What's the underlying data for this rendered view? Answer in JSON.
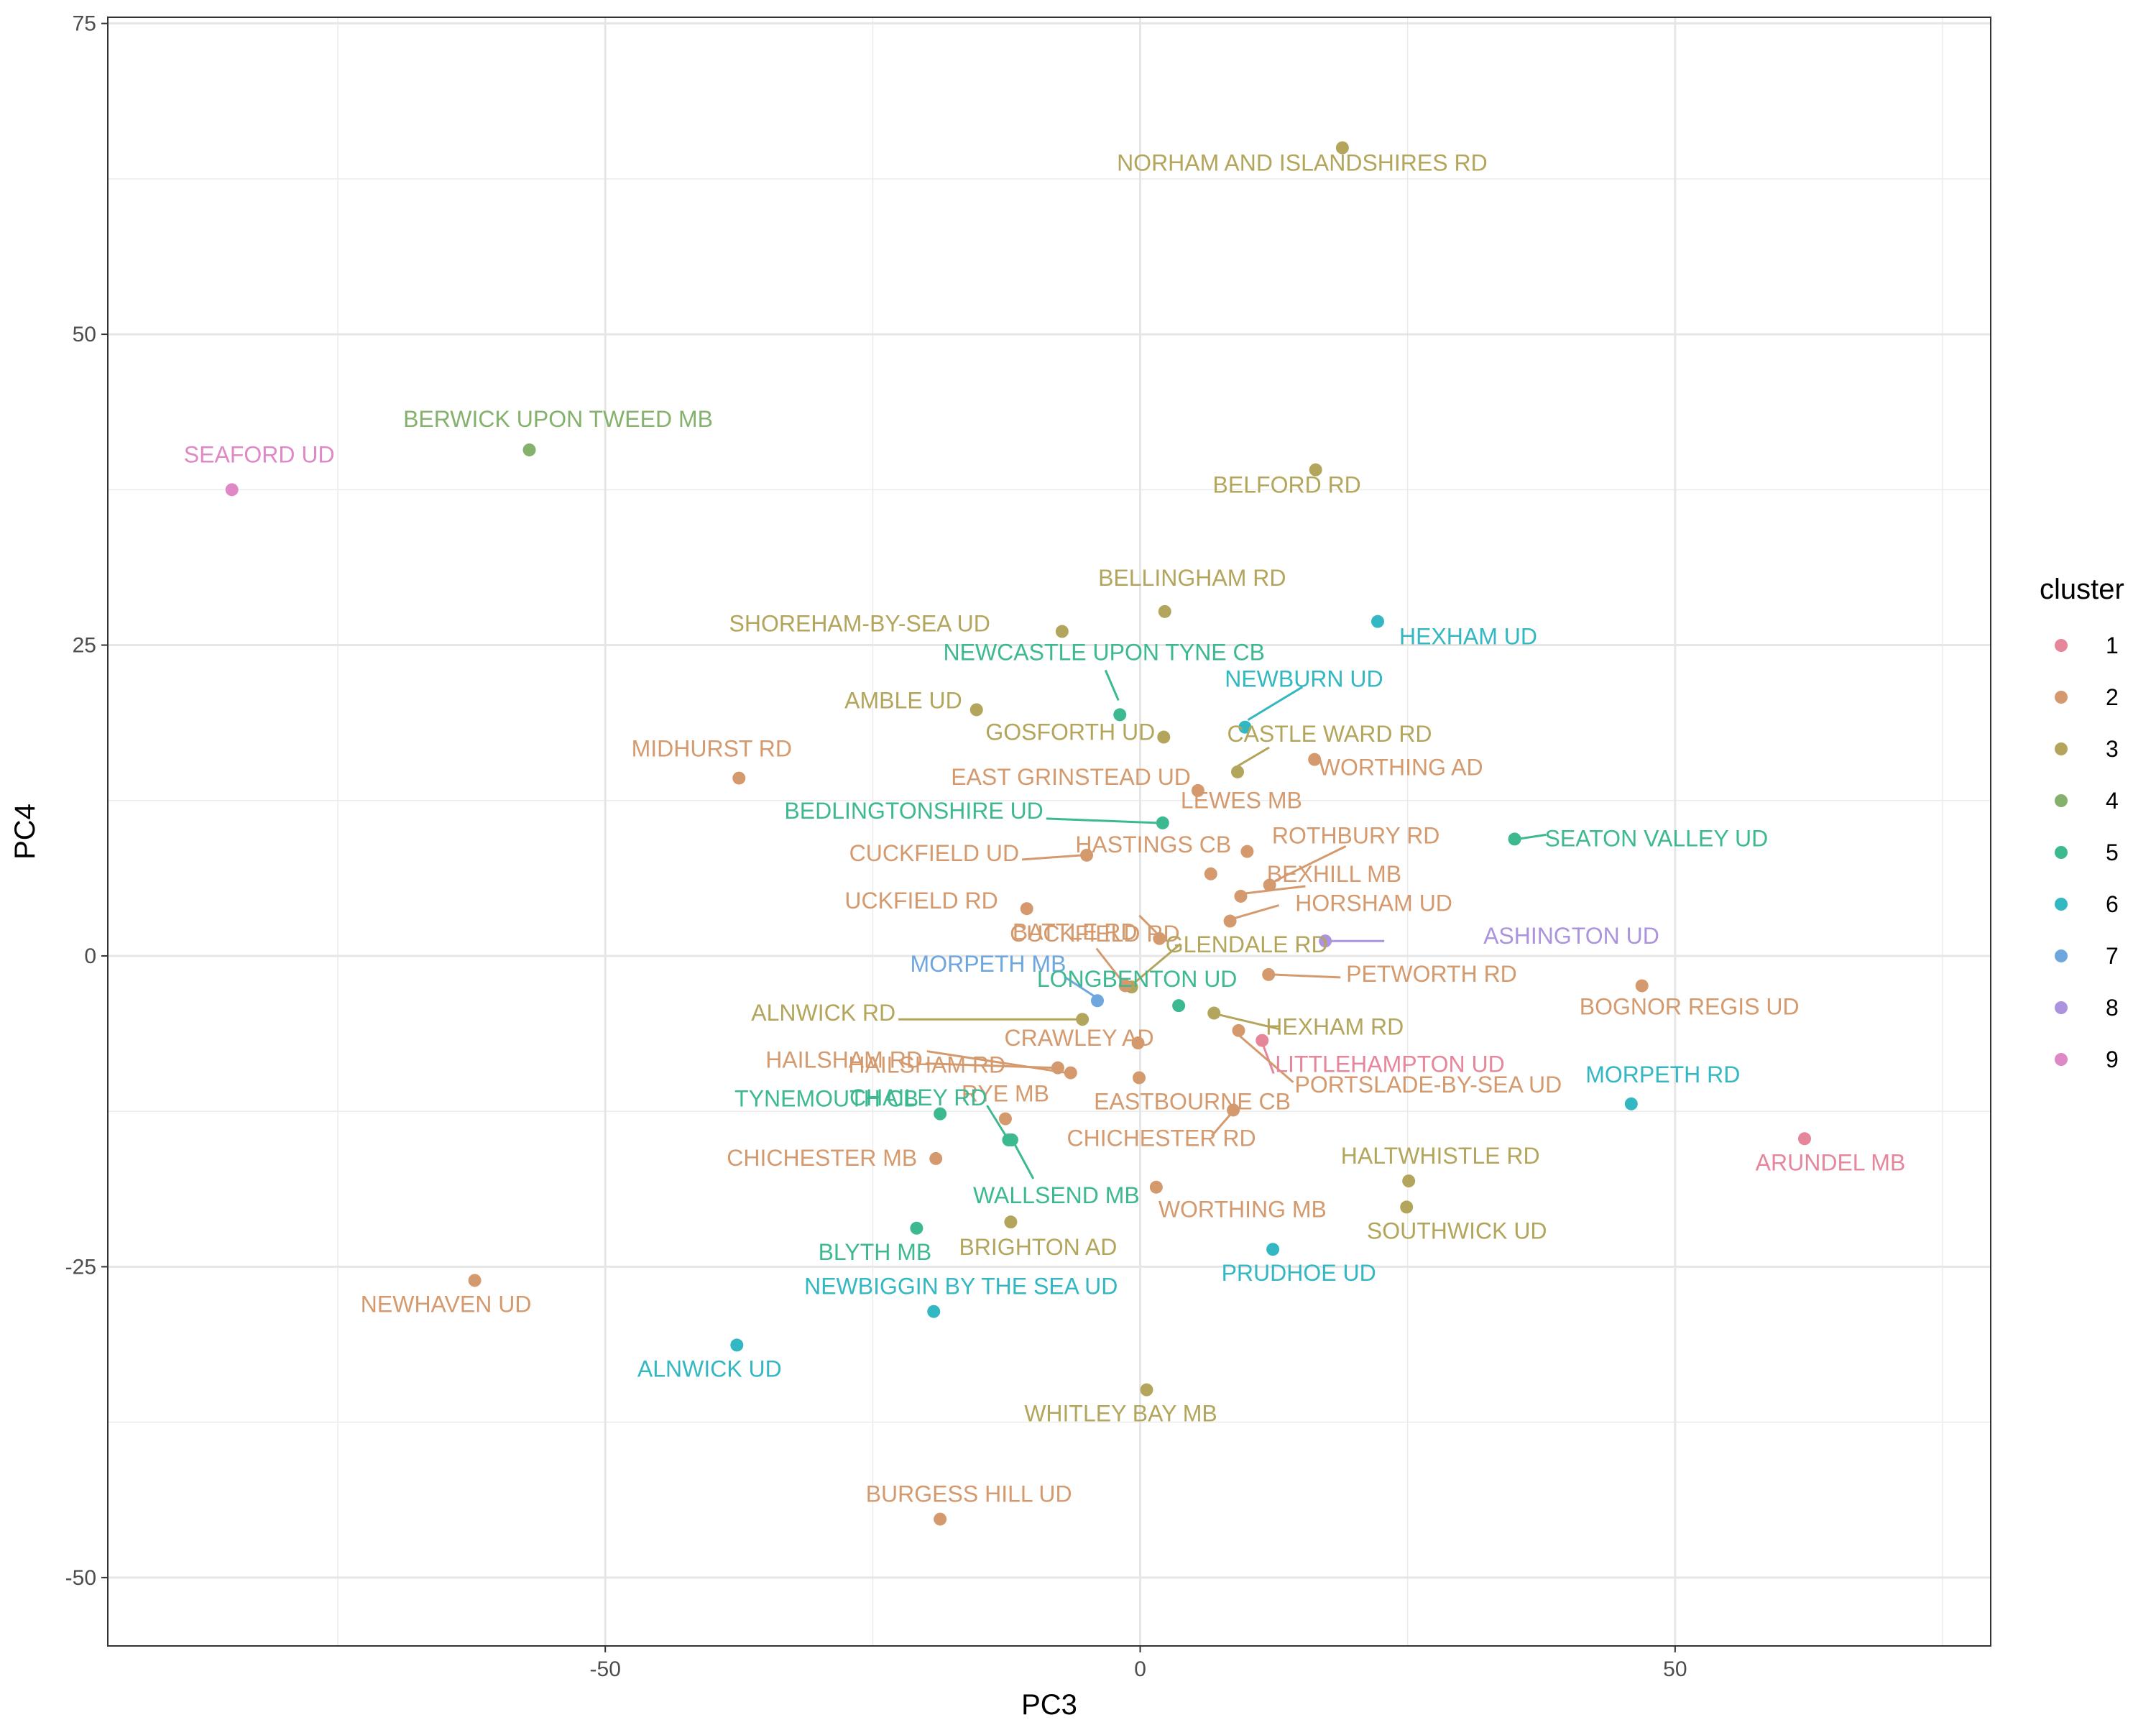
{
  "chart_data": {
    "type": "scatter",
    "xlabel": "PC3",
    "ylabel": "PC4",
    "xlim": [
      -96.5,
      79.5
    ],
    "ylim": [
      -55.5,
      75.5
    ],
    "x_ticks": [
      -50,
      0,
      50
    ],
    "y_ticks": [
      -50,
      -25,
      0,
      25,
      50,
      75
    ],
    "grid": true,
    "legend": {
      "title": "cluster",
      "position": "right",
      "entries": [
        {
          "label": "1",
          "color": "#E5869B"
        },
        {
          "label": "2",
          "color": "#D49A6E"
        },
        {
          "label": "3",
          "color": "#B3A65C"
        },
        {
          "label": "4",
          "color": "#84B26D"
        },
        {
          "label": "5",
          "color": "#3DB991"
        },
        {
          "label": "6",
          "color": "#33B7C2"
        },
        {
          "label": "7",
          "color": "#6EA6DE"
        },
        {
          "label": "8",
          "color": "#AC93DE"
        },
        {
          "label": "9",
          "color": "#DE88C6"
        }
      ]
    },
    "points": [
      {
        "name": "NORHAM AND ISLANDSHIRES RD",
        "x": 18.9,
        "y": 65.0,
        "cluster": "3"
      },
      {
        "name": "BERWICK UPON TWEED MB",
        "x": -57.1,
        "y": 40.7,
        "cluster": "4"
      },
      {
        "name": "SEAFORD UD",
        "x": -84.9,
        "y": 37.5,
        "cluster": "9"
      },
      {
        "name": "BELFORD RD",
        "x": 16.4,
        "y": 39.1,
        "cluster": "3"
      },
      {
        "name": "BELLINGHAM RD",
        "x": 2.3,
        "y": 27.7,
        "cluster": "3"
      },
      {
        "name": "SHOREHAM-BY-SEA UD",
        "x": -7.3,
        "y": 26.1,
        "cluster": "3"
      },
      {
        "name": "HEXHAM UD",
        "x": 22.2,
        "y": 26.9,
        "cluster": "6"
      },
      {
        "name": "NEWCASTLE UPON TYNE CB",
        "x": -1.9,
        "y": 19.4,
        "cluster": "5"
      },
      {
        "name": "AMBLE UD",
        "x": -15.3,
        "y": 19.8,
        "cluster": "3"
      },
      {
        "name": "NEWBURN UD",
        "x": 9.8,
        "y": 18.4,
        "cluster": "6"
      },
      {
        "name": "GOSFORTH UD",
        "x": 2.2,
        "y": 17.6,
        "cluster": "3"
      },
      {
        "name": "CASTLE WARD RD",
        "x": 9.1,
        "y": 14.8,
        "cluster": "3"
      },
      {
        "name": "MIDHURST RD",
        "x": -37.5,
        "y": 14.3,
        "cluster": "2"
      },
      {
        "name": "WORTHING AD",
        "x": 16.3,
        "y": 15.8,
        "cluster": "2"
      },
      {
        "name": "EAST GRINSTEAD UD",
        "x": 5.4,
        "y": 13.3,
        "cluster": "2"
      },
      {
        "name": "BEDLINGTONSHIRE UD",
        "x": 2.1,
        "y": 10.7,
        "cluster": "5"
      },
      {
        "name": "SEATON VALLEY UD",
        "x": 35.0,
        "y": 9.4,
        "cluster": "5"
      },
      {
        "name": "LEWES MB",
        "x": 10.0,
        "y": 8.4,
        "cluster": "2"
      },
      {
        "name": "ROTHBURY RD",
        "x": 12.1,
        "y": 5.7,
        "cluster": "2"
      },
      {
        "name": "CUCKFIELD UD",
        "x": -5.0,
        "y": 8.1,
        "cluster": "2"
      },
      {
        "name": "HASTINGS CB",
        "x": 6.6,
        "y": 6.6,
        "cluster": "2"
      },
      {
        "name": "BEXHILL MB",
        "x": 9.4,
        "y": 4.8,
        "cluster": "2"
      },
      {
        "name": "UCKFIELD RD",
        "x": -10.6,
        "y": 3.8,
        "cluster": "2"
      },
      {
        "name": "HORSHAM UD",
        "x": 8.4,
        "y": 2.8,
        "cluster": "2"
      },
      {
        "name": "CUCKFIELD RD",
        "x": 1.8,
        "y": 1.4,
        "cluster": "2"
      },
      {
        "name": "ASHINGTON UD",
        "x": 17.3,
        "y": 1.2,
        "cluster": "8"
      },
      {
        "name": "GLENDALE RD",
        "x": -0.8,
        "y": -2.5,
        "cluster": "3"
      },
      {
        "name": "BATTLE RD",
        "x": -1.4,
        "y": -2.4,
        "cluster": "2"
      },
      {
        "name": "PETWORTH RD",
        "x": 12.0,
        "y": -1.5,
        "cluster": "2"
      },
      {
        "name": "BOGNOR REGIS UD",
        "x": 46.9,
        "y": -2.4,
        "cluster": "2"
      },
      {
        "name": "MORPETH MB",
        "x": -4.0,
        "y": -3.6,
        "cluster": "7"
      },
      {
        "name": "LONGBENTON UD",
        "x": 3.6,
        "y": -4.0,
        "cluster": "5"
      },
      {
        "name": "ALNWICK RD",
        "x": -5.4,
        "y": -5.1,
        "cluster": "3"
      },
      {
        "name": "HEXHAM RD",
        "x": 6.9,
        "y": -4.6,
        "cluster": "3"
      },
      {
        "name": "CRAWLEY AD",
        "x": -0.2,
        "y": -7.0,
        "cluster": "2"
      },
      {
        "name": "LITTLEHAMPTON UD",
        "x": 11.4,
        "y": -6.8,
        "cluster": "1"
      },
      {
        "name": "HAILSHAM RD",
        "x": -7.7,
        "y": -9.0,
        "cluster": "2"
      },
      {
        "name": "HAILSHAM RD",
        "x": -6.5,
        "y": -9.4,
        "cluster": "2"
      },
      {
        "name": "EASTBOURNE CB",
        "x": -0.1,
        "y": -9.8,
        "cluster": "2"
      },
      {
        "name": "PORTSLADE-BY-SEA UD",
        "x": 9.2,
        "y": -6.0,
        "cluster": "2"
      },
      {
        "name": "MORPETH RD",
        "x": 45.9,
        "y": -11.9,
        "cluster": "6"
      },
      {
        "name": "TYNEMOUTH CB",
        "x": -18.7,
        "y": -12.7,
        "cluster": "5"
      },
      {
        "name": "RYE MB",
        "x": -12.6,
        "y": -13.1,
        "cluster": "2"
      },
      {
        "name": "CHICHESTER RD",
        "x": 8.7,
        "y": -12.4,
        "cluster": "2"
      },
      {
        "name": "ARUNDEL MB",
        "x": 62.1,
        "y": -14.7,
        "cluster": "1"
      },
      {
        "name": "CHAILEY RD",
        "x": -12.3,
        "y": -14.8,
        "cluster": "5"
      },
      {
        "name": "CHICHESTER MB",
        "x": -19.1,
        "y": -16.3,
        "cluster": "2"
      },
      {
        "name": "WALLSEND MB",
        "x": -12.0,
        "y": -14.8,
        "cluster": "5"
      },
      {
        "name": "HALTWHISTLE RD",
        "x": 25.1,
        "y": -18.1,
        "cluster": "3"
      },
      {
        "name": "WORTHING MB",
        "x": 1.5,
        "y": -18.6,
        "cluster": "2"
      },
      {
        "name": "SOUTHWICK UD",
        "x": 24.9,
        "y": -20.2,
        "cluster": "3"
      },
      {
        "name": "BRIGHTON AD",
        "x": -12.1,
        "y": -21.4,
        "cluster": "3"
      },
      {
        "name": "BLYTH MB",
        "x": -20.9,
        "y": -21.9,
        "cluster": "5"
      },
      {
        "name": "PRUDHOE UD",
        "x": 12.4,
        "y": -23.6,
        "cluster": "6"
      },
      {
        "name": "NEWHAVEN UD",
        "x": -62.2,
        "y": -26.1,
        "cluster": "2"
      },
      {
        "name": "NEWBIGGIN BY THE SEA UD",
        "x": -19.3,
        "y": -28.6,
        "cluster": "6"
      },
      {
        "name": "ALNWICK UD",
        "x": -37.7,
        "y": -31.3,
        "cluster": "6"
      },
      {
        "name": "WHITLEY BAY MB",
        "x": 0.6,
        "y": -34.9,
        "cluster": "3"
      },
      {
        "name": "BURGESS HILL UD",
        "x": -18.7,
        "y": -45.3,
        "cluster": "2"
      }
    ]
  }
}
